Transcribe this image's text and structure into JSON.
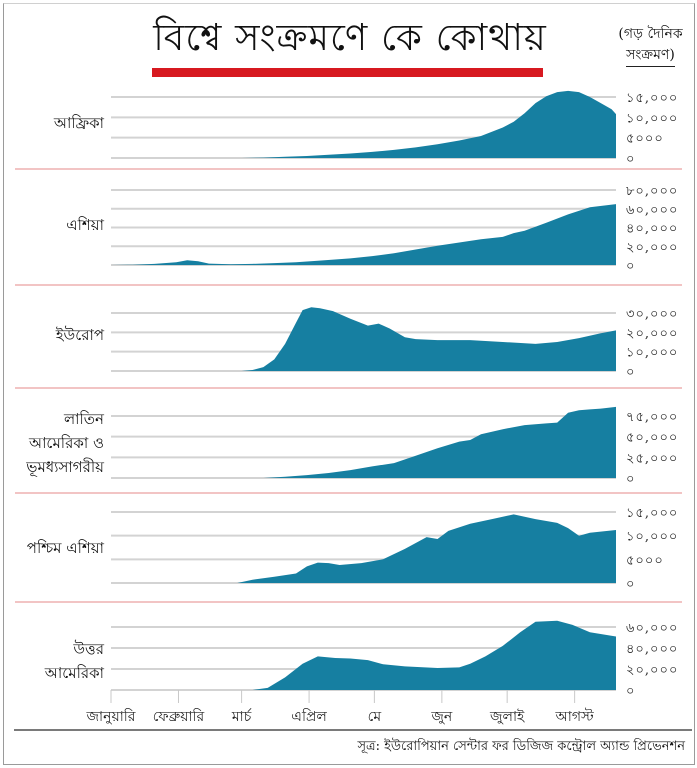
{
  "header": {
    "title": "বিশ্বে সংক্রমণে কে কোথায়",
    "unit_line1": "(গড় দৈনিক",
    "unit_line2": "সংক্রমণ)"
  },
  "source": "সূত্র: ইউরোপিয়ান সেন্টার ফর ডিজিজ কন্ট্রোল অ্যান্ড প্রিভেনশন",
  "colors": {
    "area_fill": "#167fa1",
    "gridline": "#d3d3d3",
    "panel_divider": "#e48a8a",
    "title_bar": "#d71920"
  },
  "chart_data": [
    {
      "type": "area",
      "region": "আফ্রিকা",
      "ylabel": "গড় দৈনিক সংক্রমণ",
      "ylim": [
        0,
        15000
      ],
      "yticks": [
        0,
        5000,
        10000,
        15000
      ],
      "ytick_labels": [
        "০",
        "৫০০০",
        "১০,০০০",
        "১৫,০০০"
      ],
      "x_days": [
        0,
        60,
        70,
        80,
        90,
        100,
        110,
        120,
        130,
        140,
        150,
        160,
        170,
        180,
        185,
        190,
        195,
        200,
        205,
        210,
        215,
        220,
        225,
        230,
        232
      ],
      "values": [
        0,
        0,
        100,
        300,
        500,
        800,
        1100,
        1500,
        2000,
        2600,
        3400,
        4300,
        5400,
        7500,
        8900,
        11000,
        13500,
        15200,
        16200,
        16500,
        16200,
        15000,
        13500,
        12000,
        10800
      ]
    },
    {
      "type": "area",
      "region": "এশিয়া",
      "ylim": [
        0,
        80000
      ],
      "yticks": [
        0,
        20000,
        40000,
        60000,
        80000
      ],
      "ytick_labels": [
        "০",
        "২০,০০০",
        "৪০,০০০",
        "৬০,০০০",
        "৮০,০০০"
      ],
      "x_days": [
        0,
        10,
        20,
        30,
        35,
        40,
        45,
        55,
        65,
        75,
        85,
        95,
        110,
        120,
        130,
        140,
        150,
        160,
        170,
        180,
        185,
        190,
        200,
        210,
        220,
        232
      ],
      "values": [
        0,
        300,
        1200,
        3000,
        5000,
        4000,
        1500,
        800,
        1200,
        2000,
        3000,
        4500,
        7000,
        9500,
        12500,
        16500,
        20500,
        24000,
        27500,
        30000,
        34000,
        36500,
        45000,
        54000,
        61500,
        65000
      ]
    },
    {
      "type": "area",
      "region": "ইউরোপ",
      "ylim": [
        0,
        30000
      ],
      "yticks": [
        0,
        10000,
        20000,
        30000
      ],
      "ytick_labels": [
        "০",
        "১০,০০০",
        "২০,০০০",
        "৩০,০০০"
      ],
      "x_days": [
        0,
        60,
        65,
        70,
        75,
        80,
        85,
        88,
        92,
        96,
        102,
        110,
        118,
        123,
        128,
        135,
        140,
        150,
        165,
        180,
        195,
        205,
        215,
        225,
        232
      ],
      "values": [
        0,
        0,
        500,
        2000,
        6000,
        14000,
        25000,
        31500,
        33000,
        32500,
        31000,
        27000,
        23500,
        24500,
        22000,
        17500,
        16500,
        16000,
        16000,
        15000,
        14000,
        15000,
        17000,
        19500,
        21000
      ]
    },
    {
      "type": "area",
      "region": "লাতিন আমেরিকা ও ভূমধ্যসাগরীয়",
      "ylim": [
        0,
        75000
      ],
      "yticks": [
        0,
        25000,
        50000,
        75000
      ],
      "ytick_labels": [
        "০",
        "২৫,০০০",
        "৫০,০০০",
        "৭৫,০০০"
      ],
      "x_days": [
        0,
        70,
        80,
        90,
        100,
        110,
        120,
        130,
        140,
        150,
        160,
        165,
        170,
        180,
        190,
        200,
        205,
        210,
        215,
        220,
        225,
        232
      ],
      "values": [
        0,
        0,
        1500,
        3500,
        6000,
        9500,
        14000,
        18000,
        27000,
        36000,
        44000,
        46000,
        53000,
        59000,
        64000,
        66000,
        67000,
        79000,
        82000,
        83000,
        84000,
        86000
      ]
    },
    {
      "type": "area",
      "region": "পশ্চিম এশিয়া",
      "ylim": [
        0,
        15000
      ],
      "yticks": [
        0,
        5000,
        10000,
        15000
      ],
      "ytick_labels": [
        "০",
        "৫০০০",
        "১০,০০০",
        "১৫,০০০"
      ],
      "x_days": [
        0,
        58,
        65,
        75,
        85,
        90,
        95,
        100,
        105,
        115,
        125,
        135,
        145,
        150,
        155,
        165,
        175,
        185,
        195,
        205,
        210,
        215,
        220,
        226,
        232
      ],
      "values": [
        0,
        0,
        700,
        1300,
        2000,
        3500,
        4300,
        4200,
        3800,
        4200,
        5000,
        7200,
        9700,
        9300,
        11000,
        12500,
        13500,
        14500,
        13500,
        12700,
        11600,
        10000,
        10600,
        10900,
        11200
      ]
    },
    {
      "type": "area",
      "region": "উত্তর আমেরিকা",
      "ylim": [
        0,
        60000
      ],
      "yticks": [
        0,
        20000,
        40000,
        60000
      ],
      "ytick_labels": [
        "০",
        "২০,০০০",
        "৪০,০০০",
        "৬০,০০০"
      ],
      "x_days": [
        0,
        65,
        72,
        80,
        88,
        95,
        103,
        110,
        118,
        125,
        135,
        150,
        160,
        165,
        172,
        180,
        188,
        195,
        205,
        212,
        220,
        232
      ],
      "values": [
        0,
        0,
        2000,
        12000,
        25000,
        32000,
        30500,
        30000,
        28500,
        24500,
        22500,
        21000,
        21500,
        25000,
        32000,
        42000,
        55000,
        65000,
        66000,
        62000,
        55000,
        51000
      ]
    }
  ],
  "x_axis": {
    "months": [
      "জানুয়ারি",
      "ফেব্রুয়ারি",
      "মার্চ",
      "এপ্রিল",
      "মে",
      "জুন",
      "জুলাই",
      "আগস্ট"
    ],
    "month_start_days": [
      0,
      31,
      60,
      91,
      121,
      152,
      182,
      213
    ],
    "range_days": [
      0,
      232
    ]
  }
}
